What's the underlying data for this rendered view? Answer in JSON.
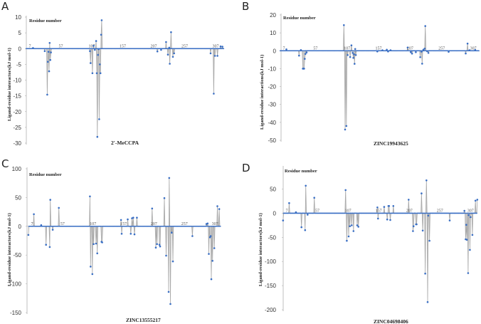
{
  "chart_data": [
    {
      "type": "line",
      "panel": "A",
      "title": "2'-MeCCPA",
      "xlabel": "Residue number",
      "ylabel": "Ligand-residue interactors(kJ mol-1)",
      "ylim": [
        -30,
        10
      ],
      "yticks": [
        10,
        5,
        0,
        -5,
        -10,
        -15,
        -20,
        -25,
        -30
      ],
      "xticks": [
        7,
        57,
        107,
        157,
        207,
        257,
        307
      ],
      "xrange": [
        1,
        320
      ],
      "points": [
        [
          12,
          0.2
        ],
        [
          31,
          -0.8
        ],
        [
          35,
          -14.6
        ],
        [
          36,
          -4.2
        ],
        [
          37,
          -1
        ],
        [
          38,
          -7.2
        ],
        [
          39,
          1.8
        ],
        [
          40,
          -3.6
        ],
        [
          41,
          -1.2
        ],
        [
          104,
          -0.8
        ],
        [
          105,
          -4.6
        ],
        [
          108,
          -7.8
        ],
        [
          110,
          0.9
        ],
        [
          112,
          -0.4
        ],
        [
          114,
          2.4
        ],
        [
          115,
          -7.8
        ],
        [
          116,
          -28
        ],
        [
          117,
          -2
        ],
        [
          118,
          -0.2
        ],
        [
          119,
          -22.4
        ],
        [
          120,
          -5
        ],
        [
          121,
          -7.8
        ],
        [
          122,
          4.4
        ],
        [
          123,
          9
        ],
        [
          213,
          -0.9
        ],
        [
          219,
          -0.4
        ],
        [
          227,
          2.1
        ],
        [
          230,
          -1.9
        ],
        [
          232,
          0.3
        ],
        [
          233,
          -4.8
        ],
        [
          235,
          5.2
        ],
        [
          238,
          -2.6
        ],
        [
          240,
          -1.5
        ],
        [
          299,
          -1.5
        ],
        [
          304,
          -14.3
        ],
        [
          306,
          -2.3
        ],
        [
          310,
          -2.3
        ],
        [
          315,
          0.7
        ],
        [
          318,
          0.6
        ]
      ]
    },
    {
      "type": "line",
      "panel": "B",
      "title": "ZINC19943625",
      "xlabel": "Residue number",
      "ylabel": "Ligand-residue interactions(kJ mol-1)",
      "ylim": [
        -50,
        20
      ],
      "yticks": [
        20,
        10,
        0,
        -10,
        -20,
        -30,
        -40,
        -50
      ],
      "xticks": [
        7,
        57,
        107,
        157,
        207,
        257,
        307
      ],
      "xrange": [
        1,
        316
      ],
      "points": [
        [
          11,
          0.8
        ],
        [
          31,
          -2.7
        ],
        [
          34,
          0.4
        ],
        [
          37,
          -10
        ],
        [
          38,
          -10
        ],
        [
          39,
          -10
        ],
        [
          40,
          -4.5
        ],
        [
          41,
          -1.8
        ],
        [
          43,
          -1
        ],
        [
          102,
          14.3
        ],
        [
          104,
          -44
        ],
        [
          106,
          -42
        ],
        [
          108,
          -2.4
        ],
        [
          112,
          -3.5
        ],
        [
          114,
          3
        ],
        [
          116,
          -1.2
        ],
        [
          117,
          -4
        ],
        [
          118,
          -2
        ],
        [
          119,
          -7.3
        ],
        [
          120,
          1
        ],
        [
          121,
          -2.4
        ],
        [
          155,
          -0.4
        ],
        [
          163,
          0.3
        ],
        [
          170,
          0.6
        ],
        [
          172,
          -0.4
        ],
        [
          176,
          0.3
        ],
        [
          203,
          1.8
        ],
        [
          208,
          -0.8
        ],
        [
          210,
          -1.6
        ],
        [
          216,
          -0.8
        ],
        [
          223,
          -3.6
        ],
        [
          225,
          -0.5
        ],
        [
          226,
          -7.2
        ],
        [
          228,
          0.6
        ],
        [
          230,
          1.2
        ],
        [
          231,
          13.8
        ],
        [
          234,
          -0.3
        ],
        [
          236,
          -1.2
        ],
        [
          268,
          -0.6
        ],
        [
          295,
          -1.5
        ],
        [
          298,
          4
        ],
        [
          301,
          0.3
        ],
        [
          310,
          0.5
        ]
      ]
    },
    {
      "type": "line",
      "panel": "C",
      "title": "ZINC13555217",
      "xlabel": "Residue number",
      "ylabel": "Ligand-residue interactors(kJ mol-1)",
      "ylim": [
        -150,
        100
      ],
      "yticks": [
        100,
        50,
        0,
        -50,
        -100,
        -150
      ],
      "xticks": [
        7,
        57,
        107,
        157,
        207,
        257,
        307
      ],
      "xrange": [
        1,
        316
      ],
      "points": [
        [
          1,
          -15
        ],
        [
          10,
          21
        ],
        [
          22,
          2
        ],
        [
          30,
          -32
        ],
        [
          36,
          -36
        ],
        [
          37,
          46
        ],
        [
          41,
          -6
        ],
        [
          51,
          32
        ],
        [
          102,
          52
        ],
        [
          103,
          -70
        ],
        [
          106,
          -83
        ],
        [
          108,
          -31
        ],
        [
          112,
          -30
        ],
        [
          114,
          -47
        ],
        [
          121,
          -27
        ],
        [
          122,
          -28
        ],
        [
          153,
          11
        ],
        [
          154,
          -13
        ],
        [
          164,
          12
        ],
        [
          169,
          -13
        ],
        [
          171,
          14
        ],
        [
          173,
          15
        ],
        [
          175,
          -14
        ],
        [
          179,
          15
        ],
        [
          204,
          31
        ],
        [
          210,
          -37
        ],
        [
          212,
          -31
        ],
        [
          216,
          -32
        ],
        [
          217,
          -35
        ],
        [
          224,
          49
        ],
        [
          227,
          -51
        ],
        [
          231,
          -114
        ],
        [
          232,
          84
        ],
        [
          234,
          -135
        ],
        [
          236,
          -11
        ],
        [
          238,
          -61
        ],
        [
          270,
          -17
        ],
        [
          293,
          4
        ],
        [
          295,
          5
        ],
        [
          297,
          -48
        ],
        [
          299,
          -19
        ],
        [
          300,
          -17
        ],
        [
          301,
          -92
        ],
        [
          303,
          -60
        ],
        [
          306,
          -38
        ],
        [
          311,
          35
        ],
        [
          314,
          30
        ]
      ]
    },
    {
      "type": "line",
      "panel": "D",
      "title": "ZINC04698406",
      "xlabel": "Residue number",
      "ylabel": "Ligand-residue interactors(kJ mol-1)",
      "ylim": [
        -200,
        98
      ],
      "yticks": [
        50,
        0,
        -50,
        -100,
        -150,
        -200
      ],
      "xticks": [
        7,
        57,
        107,
        157,
        207,
        257,
        307
      ],
      "xrange": [
        1,
        318
      ],
      "points": [
        [
          1,
          -15
        ],
        [
          11,
          21
        ],
        [
          22,
          2
        ],
        [
          31,
          -29
        ],
        [
          37,
          -35
        ],
        [
          38,
          57
        ],
        [
          41,
          -3
        ],
        [
          52,
          32
        ],
        [
          103,
          48
        ],
        [
          105,
          -57
        ],
        [
          108,
          -48
        ],
        [
          110,
          -27
        ],
        [
          113,
          -25
        ],
        [
          116,
          -37
        ],
        [
          122,
          -25
        ],
        [
          124,
          -28
        ],
        [
          155,
          12
        ],
        [
          156,
          -11
        ],
        [
          166,
          13
        ],
        [
          171,
          -13
        ],
        [
          173,
          15
        ],
        [
          174,
          15
        ],
        [
          176,
          -14
        ],
        [
          181,
          15
        ],
        [
          206,
          28
        ],
        [
          213,
          -37
        ],
        [
          214,
          -27
        ],
        [
          218,
          -23
        ],
        [
          219,
          -23
        ],
        [
          227,
          41
        ],
        [
          229,
          -36
        ],
        [
          233,
          -125
        ],
        [
          235,
          68
        ],
        [
          237,
          -184
        ],
        [
          238,
          -5
        ],
        [
          240,
          -57
        ],
        [
          273,
          -15
        ],
        [
          297,
          5
        ],
        [
          299,
          -54
        ],
        [
          300,
          -24
        ],
        [
          301,
          -55
        ],
        [
          303,
          -124
        ],
        [
          304,
          -4
        ],
        [
          306,
          -76
        ],
        [
          307,
          -8
        ],
        [
          310,
          -45
        ],
        [
          315,
          26
        ],
        [
          318,
          28
        ]
      ]
    }
  ],
  "colors": {
    "marker": "#3a6fc4",
    "line": "#a8a8a8",
    "axis": "#b0b0b0"
  }
}
